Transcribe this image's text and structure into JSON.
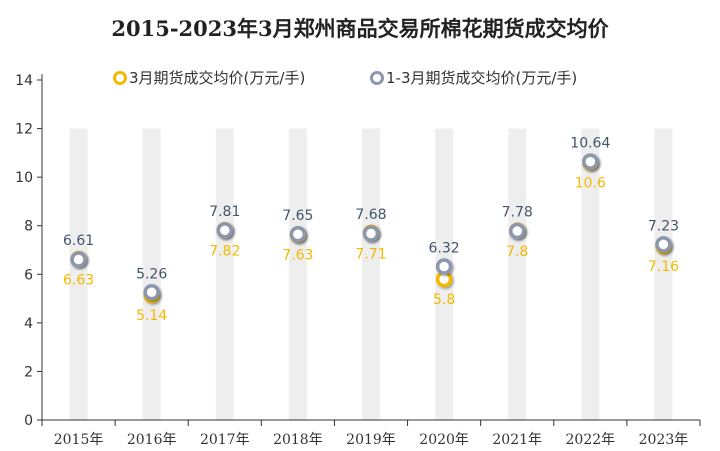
{
  "chart_data": {
    "type": "line",
    "title": "2015-2023年3月郑州商品交易所棉花期货成交均价",
    "categories": [
      "2015年",
      "2016年",
      "2017年",
      "2018年",
      "2019年",
      "2020年",
      "2021年",
      "2022年",
      "2023年"
    ],
    "series": [
      {
        "name": "3月期货成交均价(万元/手)",
        "color": "#f5b800",
        "values": [
          6.63,
          5.14,
          7.82,
          7.63,
          7.71,
          5.8,
          7.8,
          10.6,
          7.16
        ],
        "labels": [
          "6.63",
          "5.14",
          "7.82",
          "7.63",
          "7.71",
          "5.8",
          "7.8",
          "10.6",
          "7.16"
        ]
      },
      {
        "name": "1-3月期货成交均价(万元/手)",
        "color": "#8c97ad",
        "values": [
          6.61,
          5.26,
          7.81,
          7.65,
          7.68,
          6.32,
          7.78,
          10.64,
          7.23
        ],
        "labels": [
          "6.61",
          "5.26",
          "7.81",
          "7.65",
          "7.68",
          "6.32",
          "7.78",
          "10.64",
          "7.23"
        ]
      }
    ],
    "yticks": [
      "0",
      "2",
      "4",
      "6",
      "8",
      "10",
      "12",
      "14"
    ],
    "ylim": [
      0,
      14
    ],
    "legend_position": "top",
    "colors": {
      "band": "#eeeeee",
      "axis": "#333333",
      "text": "#333333"
    }
  }
}
